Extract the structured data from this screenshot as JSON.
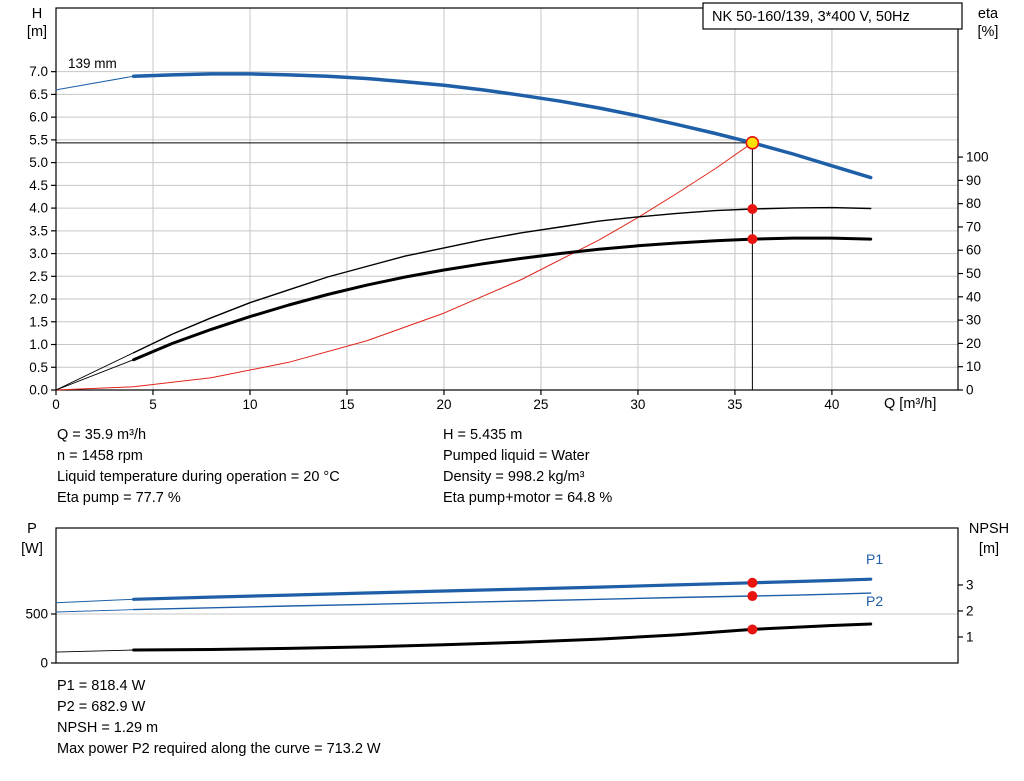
{
  "title_box": {
    "label": "NK 50-160/139, 3*400 V, 50Hz"
  },
  "top_chart": {
    "axis_title_left": [
      "H",
      "[m]"
    ],
    "axis_title_right": [
      "eta",
      "[%]"
    ],
    "x_axis_label": "Q [m³/h]",
    "impeller_label": "139 mm"
  },
  "bottom_chart": {
    "axis_title_left": [
      "P",
      "[W]"
    ],
    "axis_title_right": [
      "NPSH",
      "[m]"
    ],
    "p1_label": "P1",
    "p2_label": "P2"
  },
  "info_block": {
    "left": [
      "Q = 35.9 m³/h",
      "n = 1458 rpm",
      "Liquid temperature during operation = 20 °C",
      "Eta pump = 77.7 %"
    ],
    "right": [
      "H = 5.435 m",
      "Pumped liquid = Water",
      "Density = 998.2 kg/m³",
      "Eta pump+motor = 64.8 %"
    ]
  },
  "results_block": {
    "lines": [
      "P1 = 818.4 W",
      "P2 = 682.9 W",
      "NPSH = 1.29 m",
      "Max power P2 required along the curve = 713.2 W"
    ]
  },
  "colors": {
    "curve_blue": "#1e5fa8",
    "marker_red": "#e8140f",
    "duty_yellow": "#ffe20a",
    "system_red": "#e0251b",
    "grid": "#c6c6c6",
    "axis": "#000000"
  },
  "chart_data": [
    {
      "id": "head-efficiency-chart",
      "type": "line",
      "title": "NK 50-160/139, 3*400 V, 50Hz",
      "x": {
        "label": "Q [m³/h]",
        "range": [
          0,
          46.5
        ],
        "ticks": [
          0,
          5,
          10,
          15,
          20,
          25,
          30,
          35,
          40
        ],
        "tick_labels": [
          "0",
          "5",
          "10",
          "15",
          "20",
          "25",
          "30",
          "35",
          "40"
        ]
      },
      "y_left": {
        "label": "H [m]",
        "range": [
          0,
          8.4
        ],
        "ticks": [
          0,
          0.5,
          1,
          1.5,
          2,
          2.5,
          3,
          3.5,
          4,
          4.5,
          5,
          5.5,
          6,
          6.5,
          7
        ],
        "tick_labels": [
          "0.0",
          "0.5",
          "1.0",
          "1.5",
          "2.0",
          "2.5",
          "3.0",
          "3.5",
          "4.0",
          "4.5",
          "5.0",
          "5.5",
          "6.0",
          "6.5",
          "7.0"
        ]
      },
      "y_right": {
        "label": "eta [%]",
        "range": [
          0,
          164
        ],
        "ticks": [
          0,
          10,
          20,
          30,
          40,
          50,
          60,
          70,
          80,
          90,
          100
        ],
        "tick_labels": [
          "0",
          "10",
          "20",
          "30",
          "40",
          "50",
          "60",
          "70",
          "80",
          "90",
          "100"
        ]
      },
      "grid_v": true,
      "grid_h": true,
      "duty_lines": {
        "q": 35.9,
        "h": 5.435
      },
      "series": [
        {
          "name": "head-curve-lead",
          "axis": "left",
          "color": "#1e5fa8",
          "width": 1,
          "points": [
            [
              0,
              6.6
            ],
            [
              4,
              6.9
            ]
          ]
        },
        {
          "name": "head-curve-139mm",
          "label": "139 mm",
          "axis": "left",
          "color": "#1e5fa8",
          "width": 3.5,
          "points": [
            [
              4,
              6.9
            ],
            [
              6,
              6.93
            ],
            [
              8,
              6.95
            ],
            [
              10,
              6.95
            ],
            [
              12,
              6.93
            ],
            [
              14,
              6.9
            ],
            [
              16,
              6.85
            ],
            [
              18,
              6.78
            ],
            [
              20,
              6.7
            ],
            [
              22,
              6.6
            ],
            [
              24,
              6.48
            ],
            [
              26,
              6.35
            ],
            [
              28,
              6.2
            ],
            [
              30,
              6.03
            ],
            [
              32,
              5.84
            ],
            [
              34,
              5.64
            ],
            [
              35.9,
              5.435
            ],
            [
              38,
              5.19
            ],
            [
              40,
              4.93
            ],
            [
              42,
              4.67
            ]
          ]
        },
        {
          "name": "system-curve",
          "axis": "left",
          "color": "#e0251b",
          "width": 1,
          "points": [
            [
              0,
              0
            ],
            [
              4,
              0.07
            ],
            [
              8,
              0.27
            ],
            [
              12,
              0.61
            ],
            [
              16,
              1.08
            ],
            [
              20,
              1.69
            ],
            [
              24,
              2.43
            ],
            [
              28,
              3.3
            ],
            [
              30,
              3.79
            ],
            [
              32,
              4.32
            ],
            [
              34,
              4.87
            ],
            [
              35.9,
              5.435
            ]
          ]
        },
        {
          "name": "eta-pump-lead",
          "axis": "right",
          "color": "#000000",
          "width": 0.9,
          "points": [
            [
              0,
              0
            ],
            [
              4,
              16
            ]
          ]
        },
        {
          "name": "eta-pump-curve",
          "axis": "right",
          "color": "#000000",
          "width": 1.4,
          "points": [
            [
              4,
              16
            ],
            [
              6,
              24
            ],
            [
              8,
              31
            ],
            [
              10,
              37.5
            ],
            [
              12,
              43
            ],
            [
              14,
              48.5
            ],
            [
              16,
              53
            ],
            [
              18,
              57.5
            ],
            [
              20,
              61
            ],
            [
              22,
              64.5
            ],
            [
              24,
              67.5
            ],
            [
              26,
              70
            ],
            [
              28,
              72.5
            ],
            [
              30,
              74.3
            ],
            [
              32,
              75.8
            ],
            [
              34,
              77
            ],
            [
              35.9,
              77.7
            ],
            [
              38,
              78.2
            ],
            [
              40,
              78.3
            ],
            [
              42,
              77.9
            ]
          ]
        },
        {
          "name": "eta-pump-motor-lead",
          "axis": "right",
          "color": "#000000",
          "width": 0.9,
          "points": [
            [
              0,
              0
            ],
            [
              4,
              13
            ]
          ]
        },
        {
          "name": "eta-pump-motor-curve",
          "axis": "right",
          "color": "#000000",
          "width": 3,
          "points": [
            [
              4,
              13
            ],
            [
              6,
              20
            ],
            [
              8,
              26
            ],
            [
              10,
              31.5
            ],
            [
              12,
              36.5
            ],
            [
              14,
              41
            ],
            [
              16,
              45
            ],
            [
              18,
              48.5
            ],
            [
              20,
              51.5
            ],
            [
              22,
              54.2
            ],
            [
              24,
              56.5
            ],
            [
              26,
              58.6
            ],
            [
              28,
              60.4
            ],
            [
              30,
              61.9
            ],
            [
              32,
              63.1
            ],
            [
              34,
              64.1
            ],
            [
              35.9,
              64.8
            ],
            [
              38,
              65.2
            ],
            [
              40,
              65.2
            ],
            [
              42,
              64.8
            ]
          ]
        }
      ],
      "markers": [
        {
          "name": "duty-point",
          "axis": "left",
          "q": 35.9,
          "v": 5.435,
          "style": "duty"
        },
        {
          "name": "eta-pump-marker",
          "axis": "right",
          "q": 35.9,
          "v": 77.7,
          "style": "red"
        },
        {
          "name": "eta-pump-motor-marker",
          "axis": "right",
          "q": 35.9,
          "v": 64.8,
          "style": "red"
        }
      ]
    },
    {
      "id": "power-npsh-chart",
      "type": "line",
      "x": {
        "label": "",
        "range": [
          0,
          46.5
        ],
        "ticks": [],
        "tick_labels": []
      },
      "y_left": {
        "label": "P [W]",
        "range": [
          0,
          1377
        ],
        "ticks": [
          0,
          500
        ],
        "tick_labels": [
          "0",
          "500"
        ]
      },
      "y_right": {
        "label": "NPSH [m]",
        "range": [
          0,
          5.19
        ],
        "ticks": [
          1,
          2,
          3
        ],
        "tick_labels": [
          "1",
          "2",
          "3"
        ]
      },
      "grid_v": false,
      "grid_h": true,
      "series": [
        {
          "name": "p1-curve-lead",
          "axis": "left",
          "color": "#1e5fa8",
          "width": 1,
          "points": [
            [
              0,
              615
            ],
            [
              4,
              650
            ]
          ]
        },
        {
          "name": "p1-curve",
          "label": "P1",
          "axis": "left",
          "color": "#1e5fa8",
          "width": 3.2,
          "points": [
            [
              4,
              650
            ],
            [
              8,
              672
            ],
            [
              12,
              693
            ],
            [
              16,
              714
            ],
            [
              20,
              734
            ],
            [
              24,
              754
            ],
            [
              28,
              774
            ],
            [
              32,
              797
            ],
            [
              35.9,
              818.4
            ],
            [
              38,
              830
            ],
            [
              40,
              842
            ],
            [
              42,
              855
            ]
          ]
        },
        {
          "name": "p2-curve-lead",
          "axis": "left",
          "color": "#1e5fa8",
          "width": 0.9,
          "points": [
            [
              0,
              520
            ],
            [
              4,
              545
            ]
          ]
        },
        {
          "name": "p2-curve",
          "label": "P2",
          "axis": "left",
          "color": "#1e5fa8",
          "width": 1.4,
          "points": [
            [
              4,
              545
            ],
            [
              8,
              563
            ],
            [
              12,
              581
            ],
            [
              16,
              598
            ],
            [
              20,
              615
            ],
            [
              24,
              632
            ],
            [
              28,
              650
            ],
            [
              32,
              668
            ],
            [
              35.9,
              682.9
            ],
            [
              38,
              692
            ],
            [
              40,
              702
            ],
            [
              42,
              713.2
            ]
          ]
        },
        {
          "name": "npsh-curve-lead",
          "axis": "right",
          "color": "#000000",
          "width": 0.9,
          "points": [
            [
              0,
              0.42
            ],
            [
              4,
              0.5
            ]
          ]
        },
        {
          "name": "npsh-curve",
          "label": "NPSH",
          "axis": "right",
          "color": "#000000",
          "width": 3,
          "points": [
            [
              4,
              0.5
            ],
            [
              8,
              0.52
            ],
            [
              12,
              0.56
            ],
            [
              16,
              0.62
            ],
            [
              20,
              0.7
            ],
            [
              24,
              0.8
            ],
            [
              28,
              0.92
            ],
            [
              32,
              1.08
            ],
            [
              35.9,
              1.29
            ],
            [
              38,
              1.37
            ],
            [
              40,
              1.44
            ],
            [
              42,
              1.5
            ]
          ]
        }
      ],
      "markers": [
        {
          "name": "p1-marker",
          "axis": "left",
          "q": 35.9,
          "v": 818.4,
          "style": "red"
        },
        {
          "name": "p2-marker",
          "axis": "left",
          "q": 35.9,
          "v": 682.9,
          "style": "red"
        },
        {
          "name": "npsh-marker",
          "axis": "right",
          "q": 35.9,
          "v": 1.29,
          "style": "red"
        }
      ]
    }
  ]
}
